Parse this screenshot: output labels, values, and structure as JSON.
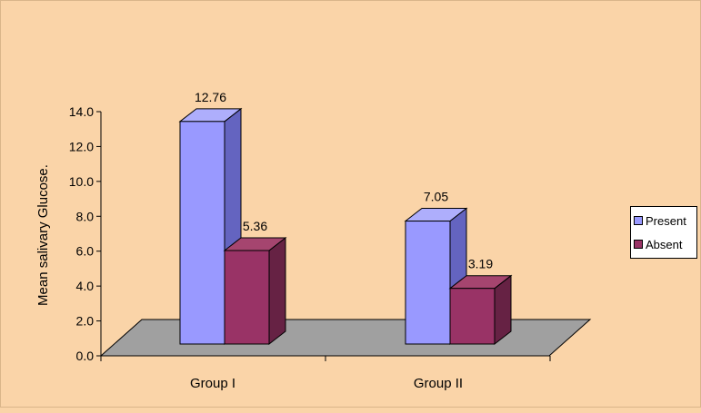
{
  "chart_data": {
    "type": "bar",
    "title": "",
    "xlabel": "",
    "ylabel": "Mean salivary Glucose.",
    "categories": [
      "Group I",
      "Group II"
    ],
    "series": [
      {
        "name": "Present",
        "values": [
          12.76,
          7.05
        ],
        "color": "#9999ff",
        "side_color": "#6464c0",
        "top_color": "#aeaefc"
      },
      {
        "name": "Absent",
        "values": [
          5.36,
          3.19
        ],
        "color": "#993366",
        "side_color": "#662244",
        "top_color": "#a5456f"
      }
    ],
    "data_labels": [
      "12.76",
      "5.36",
      "7.05",
      "3.19"
    ],
    "y_ticks": [
      "0.0",
      "2.0",
      "4.0",
      "6.0",
      "8.0",
      "10.0",
      "12.0",
      "14.0"
    ],
    "ylim": [
      0,
      14
    ],
    "grid": false,
    "legend_position": "right",
    "background_color": "#fad4a8",
    "floor_color": "#a0a0a0"
  }
}
